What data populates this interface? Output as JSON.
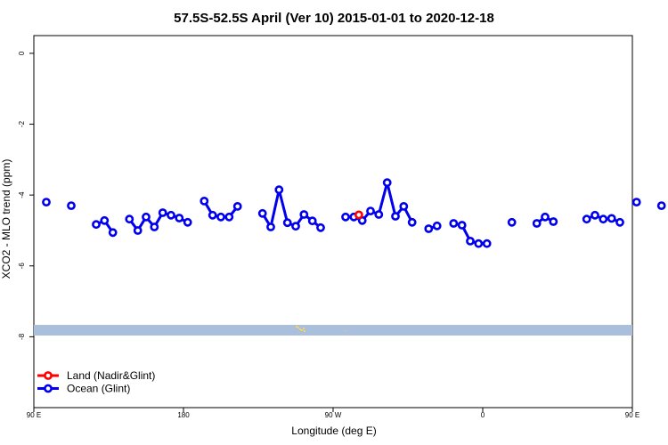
{
  "colors": {
    "ocean": "#0000ee",
    "land": "#ff0000",
    "map_band": "#a9bfdc",
    "map_land": "#f3d36b"
  },
  "chart_data": {
    "type": "line",
    "title": "57.5S-52.5S April (Ver 10)   2015-01-01 to 2020-12-18",
    "xlabel": "Longitude (deg E)",
    "ylabel": "XCO2 - MLO trend (ppm)",
    "xlim": [
      90,
      450
    ],
    "ylim": [
      -10,
      0.5
    ],
    "x_ticks": [
      {
        "value": 90,
        "label": "90 E"
      },
      {
        "value": 180,
        "label": "180"
      },
      {
        "value": 270,
        "label": "90 W"
      },
      {
        "value": 360,
        "label": "0"
      },
      {
        "value": 450,
        "label": "90 E"
      },
      {
        "value": 540,
        "label": "180"
      }
    ],
    "y_ticks": [
      {
        "value": 0,
        "label": "0"
      },
      {
        "value": -2,
        "label": "-2"
      },
      {
        "value": -4,
        "label": "-4"
      },
      {
        "value": -6,
        "label": "-6"
      },
      {
        "value": -8,
        "label": "-8"
      }
    ],
    "legend": {
      "position": "bottom-left",
      "entries": [
        {
          "label": "Land (Nadir&Glint)",
          "color_key": "land"
        },
        {
          "label": "Ocean (Glint)",
          "color_key": "ocean"
        }
      ]
    },
    "series": [
      {
        "name": "Ocean (Glint)",
        "color_key": "ocean",
        "segments": [
          [
            [
              97.5,
              -4.2
            ]
          ],
          [
            [
              112.5,
              -4.3
            ]
          ],
          [
            [
              127.5,
              -4.83
            ],
            [
              132.5,
              -4.72
            ],
            [
              137.5,
              -5.06
            ]
          ],
          [
            [
              147.5,
              -4.68
            ],
            [
              152.5,
              -5.0
            ],
            [
              157.5,
              -4.62
            ],
            [
              162.5,
              -4.9
            ],
            [
              167.5,
              -4.5
            ],
            [
              172.5,
              -4.57
            ],
            [
              177.5,
              -4.65
            ],
            [
              182.5,
              -4.77
            ]
          ],
          [
            [
              192.5,
              -4.17
            ],
            [
              197.5,
              -4.57
            ],
            [
              202.5,
              -4.62
            ],
            [
              207.5,
              -4.62
            ],
            [
              212.5,
              -4.32
            ]
          ],
          [
            [
              227.5,
              -4.52
            ],
            [
              232.5,
              -4.9
            ],
            [
              237.5,
              -3.85
            ],
            [
              242.5,
              -4.78
            ],
            [
              247.5,
              -4.88
            ],
            [
              252.5,
              -4.55
            ],
            [
              257.5,
              -4.73
            ],
            [
              262.5,
              -4.92
            ]
          ],
          [
            [
              277.5,
              -4.62
            ],
            [
              282.5,
              -4.62
            ],
            [
              287.5,
              -4.72
            ],
            [
              292.5,
              -4.45
            ],
            [
              297.5,
              -4.55
            ],
            [
              302.5,
              -3.65
            ],
            [
              307.5,
              -4.6
            ],
            [
              312.5,
              -4.32
            ],
            [
              317.5,
              -4.77
            ]
          ],
          [
            [
              327.5,
              -4.95
            ],
            [
              332.5,
              -4.87
            ]
          ],
          [
            [
              342.5,
              -4.8
            ],
            [
              347.5,
              -4.85
            ],
            [
              352.5,
              -5.3
            ],
            [
              357.5,
              -5.37
            ],
            [
              362.5,
              -5.37
            ]
          ],
          [
            [
              377.5,
              -4.77
            ]
          ],
          [
            [
              392.5,
              -4.8
            ],
            [
              397.5,
              -4.62
            ],
            [
              402.5,
              -4.75
            ]
          ],
          [
            [
              422.5,
              -4.68
            ],
            [
              427.5,
              -4.57
            ],
            [
              432.5,
              -4.68
            ],
            [
              437.5,
              -4.66
            ],
            [
              442.5,
              -4.77
            ]
          ],
          [
            [
              452.5,
              -4.2
            ]
          ],
          [
            [
              467.5,
              -4.3
            ]
          ]
        ]
      },
      {
        "name": "Land (Nadir&Glint)",
        "color_key": "land",
        "segments": [
          [
            [
              285.5,
              -4.56
            ]
          ]
        ]
      }
    ]
  }
}
